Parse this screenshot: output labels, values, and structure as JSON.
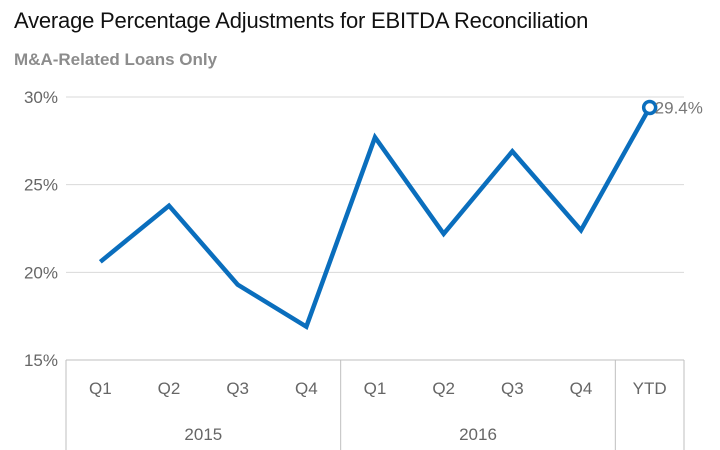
{
  "title": "Average Percentage Adjustments for EBITDA Reconciliation",
  "subtitle": "M&A-Related Loans Only",
  "colors": {
    "line": "#0a6ebd",
    "grid": "#d9d9d9",
    "axis": "#bfbfbf"
  },
  "chart_data": {
    "type": "line",
    "title": "Average Percentage Adjustments for EBITDA Reconciliation",
    "subtitle": "M&A-Related Loans Only",
    "categories": [
      "Q1",
      "Q2",
      "Q3",
      "Q4",
      "Q1",
      "Q2",
      "Q3",
      "Q4",
      "YTD"
    ],
    "category_groups": [
      {
        "label": "2015",
        "span": 4
      },
      {
        "label": "2016",
        "span": 4
      },
      {
        "label": "",
        "span": 1
      }
    ],
    "series": [
      {
        "values": [
          20.6,
          23.8,
          19.3,
          16.9,
          27.7,
          22.2,
          26.9,
          22.4,
          29.4
        ]
      }
    ],
    "data_labels": [
      {
        "index": 8,
        "text": "29.4%"
      }
    ],
    "yticks": [
      "15%",
      "20%",
      "25%",
      "30%"
    ],
    "ytick_values": [
      15,
      20,
      25,
      30
    ],
    "ylim": [
      15,
      30
    ],
    "grid": true,
    "xlabel": "",
    "ylabel": ""
  }
}
